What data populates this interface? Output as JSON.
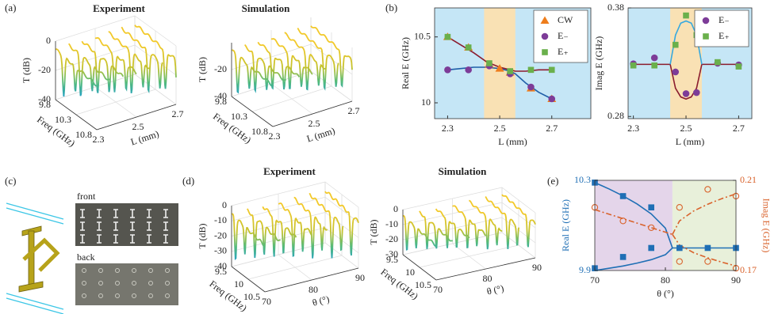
{
  "panel_labels": [
    "(a)",
    "(b)",
    "(c)",
    "(d)",
    "(e)"
  ],
  "photo_labels": [
    "front",
    "back"
  ],
  "chart_data": [
    {
      "type": "waterfall3d",
      "title": "Experiment",
      "xlabel": "Freq (GHz)",
      "ylabel": "L (mm)",
      "zlabel": "T (dB)",
      "xlim": [
        9.8,
        10.8
      ],
      "xticks": [
        9.8,
        10.3,
        10.8
      ],
      "ylim": [
        2.3,
        2.7
      ],
      "yticks": [
        2.3,
        2.5,
        2.7
      ],
      "zlim": [
        -40,
        0
      ],
      "zticks": [
        -40,
        -20,
        0
      ]
    },
    {
      "type": "waterfall3d",
      "title": "Simulation",
      "xlabel": "Freq (GHz)",
      "ylabel": "L (mm)",
      "zlabel": "T (dB)",
      "xlim": [
        9.8,
        10.8
      ],
      "xticks": [
        9.8,
        10.3,
        10.8
      ],
      "ylim": [
        2.3,
        2.7
      ],
      "yticks": [
        2.3,
        2.5,
        2.7
      ],
      "zlim": [
        -40,
        0
      ],
      "zticks": [
        -40,
        -20
      ]
    },
    {
      "type": "scatter",
      "xlabel": "L (mm)",
      "ylabel": "Real E (GHz)",
      "xlim": [
        2.25,
        2.85
      ],
      "xticks": [
        2.3,
        2.5,
        2.7
      ],
      "ylim": [
        9.88,
        10.72
      ],
      "yticks": [
        10,
        10.5
      ],
      "background": "#c5e6f6",
      "bands": [
        {
          "x": [
            2.44,
            2.56
          ],
          "color": "#f9e1b4"
        }
      ],
      "legend": "upper right",
      "series": [
        {
          "name": "CW",
          "marker": "triangle",
          "color": "#ee7d1c",
          "x": [
            2.3,
            2.38,
            2.46,
            2.5,
            2.54,
            2.62,
            2.7
          ],
          "values": [
            10.5,
            10.42,
            10.29,
            10.26,
            10.23,
            10.11,
            10.03
          ]
        },
        {
          "name": "E₋",
          "marker": "circle",
          "color": "#7d3c98",
          "x": [
            2.3,
            2.38,
            2.46,
            2.54,
            2.62,
            2.7
          ],
          "values": [
            10.25,
            10.25,
            10.28,
            10.22,
            10.12,
            10.03
          ]
        },
        {
          "name": "E₊",
          "marker": "square",
          "color": "#6ab04c",
          "x": [
            2.3,
            2.38,
            2.46,
            2.54,
            2.62,
            2.7
          ],
          "values": [
            10.5,
            10.42,
            10.3,
            10.24,
            10.25,
            10.25
          ]
        }
      ],
      "fits": [
        {
          "color": "#8b1c2e",
          "x": [
            2.3,
            2.35,
            2.4,
            2.45,
            2.5,
            2.54,
            2.56,
            2.6,
            2.65,
            2.7
          ],
          "values": [
            10.5,
            10.44,
            10.38,
            10.31,
            10.27,
            10.25,
            10.24,
            10.24,
            10.25,
            10.25
          ]
        },
        {
          "color": "#1f5fa8",
          "x": [
            2.3,
            2.35,
            2.4,
            2.45,
            2.5,
            2.54,
            2.56,
            2.6,
            2.65,
            2.7
          ],
          "values": [
            10.25,
            10.26,
            10.27,
            10.27,
            10.26,
            10.24,
            10.22,
            10.15,
            10.08,
            10.03
          ]
        }
      ]
    },
    {
      "type": "scatter",
      "xlabel": "L (mm)",
      "ylabel": "Imag E (GHz)",
      "xlim": [
        2.28,
        2.75
      ],
      "xticks": [
        2.3,
        2.5,
        2.7
      ],
      "ylim": [
        0.278,
        0.38
      ],
      "yticks": [
        0.28,
        0.38
      ],
      "background": "#c5e6f6",
      "bands": [
        {
          "x": [
            2.44,
            2.56
          ],
          "color": "#f9e1b4"
        }
      ],
      "legend": "upper right",
      "series": [
        {
          "name": "E₋",
          "marker": "circle",
          "color": "#7d3c98",
          "x": [
            2.3,
            2.38,
            2.46,
            2.5,
            2.54,
            2.62,
            2.7
          ],
          "values": [
            0.3285,
            0.334,
            0.321,
            0.301,
            0.302,
            0.329,
            0.3275
          ]
        },
        {
          "name": "E₊",
          "marker": "square",
          "color": "#6ab04c",
          "x": [
            2.3,
            2.38,
            2.46,
            2.5,
            2.54,
            2.62,
            2.7
          ],
          "values": [
            0.327,
            0.327,
            0.346,
            0.373,
            0.355,
            0.33,
            0.326
          ]
        }
      ],
      "fits": [
        {
          "color": "#8b1c2e",
          "x": [
            2.3,
            2.44,
            2.46,
            2.48,
            2.5,
            2.52,
            2.54,
            2.56,
            2.7
          ],
          "values": [
            0.328,
            0.328,
            0.306,
            0.298,
            0.296,
            0.298,
            0.306,
            0.328,
            0.328
          ]
        },
        {
          "color": "#35a8e0",
          "x": [
            2.44,
            2.46,
            2.48,
            2.5,
            2.52,
            2.54,
            2.56
          ],
          "values": [
            0.328,
            0.355,
            0.366,
            0.368,
            0.366,
            0.355,
            0.328
          ]
        }
      ]
    },
    {
      "type": "waterfall3d",
      "title": "Experiment",
      "xlabel": "Freq (GHz)",
      "ylabel": "θ (°)",
      "zlabel": "T (dB)",
      "xlim": [
        9.5,
        10.5
      ],
      "xticks": [
        9.5,
        10,
        10.5
      ],
      "ylim": [
        70,
        90
      ],
      "yticks": [
        70,
        80,
        90
      ],
      "zlim": [
        -40,
        0
      ],
      "zticks": [
        -40,
        -30,
        -20,
        -10,
        0
      ]
    },
    {
      "type": "waterfall3d",
      "title": "Simulation",
      "xlabel": "Freq (GHz)",
      "ylabel": "θ (°)",
      "zlabel": "T (dB)",
      "xlim": [
        9.5,
        10.5
      ],
      "xticks": [
        9.5,
        10,
        10.5
      ],
      "ylim": [
        70,
        90
      ],
      "yticks": [
        70,
        80,
        90
      ],
      "zlim": [
        -30,
        0
      ],
      "zticks": [
        -30,
        -20,
        -10,
        0
      ]
    },
    {
      "type": "scatter",
      "xlabel": "θ (°)",
      "ylabel": "Real E (GHz)",
      "y2label": "Imag E (GHz)",
      "xlim": [
        70,
        90
      ],
      "xticks": [
        70,
        80,
        90
      ],
      "ylim": [
        9.9,
        10.3
      ],
      "yticks": [
        9.9,
        10.3
      ],
      "y2lim": [
        0.17,
        0.21
      ],
      "y2ticks": [
        0.17,
        0.21
      ],
      "ycolor": "#1f6fb5",
      "y2color": "#d9622b",
      "bands": [
        {
          "x": [
            70,
            81
          ],
          "color": "#e4d5ea"
        },
        {
          "x": [
            81,
            90
          ],
          "color": "#e8f0da"
        }
      ],
      "series": [
        {
          "marker": "square",
          "color": "#1f6fb5",
          "x": [
            70,
            74,
            78,
            70,
            74,
            78,
            82,
            86,
            90
          ],
          "values": [
            10.29,
            10.23,
            10.18,
            9.91,
            9.96,
            10.0,
            10.0,
            10.0,
            10.0
          ]
        },
        {
          "axis": "y2",
          "marker": "open-circle",
          "color": "#d9622b",
          "x": [
            70,
            74,
            78,
            82,
            86,
            90,
            82,
            86,
            90
          ],
          "values": [
            0.198,
            0.192,
            0.189,
            0.198,
            0.206,
            0.203,
            0.174,
            0.174,
            0.171
          ]
        }
      ],
      "fits": [
        {
          "color": "#1f6fb5",
          "x": [
            70,
            72,
            74,
            76,
            78,
            80,
            81
          ],
          "values": [
            10.29,
            10.262,
            10.231,
            10.195,
            10.151,
            10.088,
            10.0
          ]
        },
        {
          "color": "#1f6fb5",
          "x": [
            70,
            72,
            74,
            76,
            78,
            80,
            81
          ],
          "values": [
            9.9,
            9.91,
            9.92,
            9.933,
            9.948,
            9.97,
            10.0
          ]
        },
        {
          "color": "#1f6fb5",
          "x": [
            81,
            90
          ],
          "values": [
            10.0,
            10.0
          ]
        },
        {
          "axis": "y2",
          "dash": "dashdot",
          "color": "#d9622b",
          "x": [
            70,
            72,
            74,
            76,
            78,
            80,
            81
          ],
          "values": [
            0.197,
            0.195,
            0.193,
            0.191,
            0.189,
            0.187,
            0.186
          ]
        },
        {
          "axis": "y2",
          "dash": "dashdot",
          "color": "#d9622b",
          "x": [
            81,
            82,
            84,
            86,
            88,
            90
          ],
          "values": [
            0.186,
            0.192,
            0.1964,
            0.1994,
            0.2019,
            0.204
          ]
        },
        {
          "axis": "y2",
          "dash": "dashdot",
          "color": "#d9622b",
          "x": [
            81,
            82,
            84,
            86,
            88,
            90
          ],
          "values": [
            0.186,
            0.1813,
            0.1779,
            0.1756,
            0.1737,
            0.172
          ]
        }
      ]
    }
  ]
}
